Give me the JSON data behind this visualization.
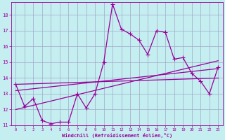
{
  "xlabel": "Windchill (Refroidissement éolien,°C)",
  "bg_color": "#c5eef0",
  "grid_color": "#a0a8c8",
  "line_color": "#990099",
  "xlim": [
    -0.5,
    23.5
  ],
  "ylim": [
    11,
    18.8
  ],
  "xticks": [
    0,
    1,
    2,
    3,
    4,
    5,
    6,
    7,
    8,
    9,
    10,
    11,
    12,
    13,
    14,
    15,
    16,
    17,
    18,
    19,
    20,
    21,
    22,
    23
  ],
  "yticks": [
    11,
    12,
    13,
    14,
    15,
    16,
    17,
    18
  ],
  "series1_x": [
    0,
    1,
    2,
    3,
    4,
    5,
    6,
    7,
    8,
    9,
    10,
    11,
    12,
    13,
    14,
    15,
    16,
    17,
    18,
    19,
    20,
    21,
    22,
    23
  ],
  "series1_y": [
    13.6,
    12.2,
    12.7,
    11.3,
    11.1,
    11.2,
    11.2,
    13.0,
    12.1,
    13.0,
    15.0,
    18.7,
    17.1,
    16.8,
    16.4,
    15.5,
    17.0,
    16.9,
    15.2,
    15.3,
    14.3,
    13.8,
    13.0,
    14.7
  ],
  "series2_x": [
    0,
    23
  ],
  "series2_y": [
    12.0,
    15.1
  ],
  "series3_x": [
    0,
    23
  ],
  "series3_y": [
    13.2,
    14.6
  ],
  "series4_x": [
    0,
    23
  ],
  "series4_y": [
    13.6,
    14.0
  ],
  "markersize": 3,
  "linewidth": 0.9
}
